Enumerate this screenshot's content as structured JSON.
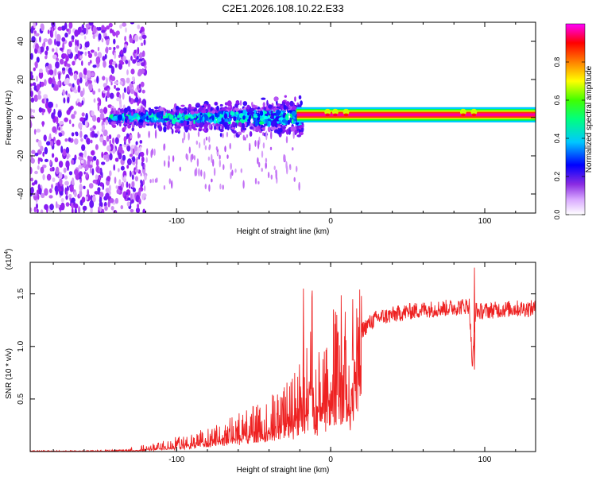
{
  "figure": {
    "title": "C2E1.2026.108.10.22.E33"
  },
  "chart_data": [
    {
      "type": "heatmap",
      "name": "spectrogram",
      "xlabel": "Height of straight line (km)",
      "ylabel": "Frequency (Hz)",
      "xlim": [
        -195,
        133
      ],
      "ylim": [
        -50,
        50
      ],
      "x_ticks": [
        -100,
        0,
        100
      ],
      "x_tick_labels": [
        "-100",
        "0",
        "100"
      ],
      "y_ticks": [
        -40,
        -20,
        0,
        20,
        40
      ],
      "y_tick_labels": [
        "-40",
        "-20",
        "0",
        "20",
        "40"
      ],
      "colorbar": {
        "label": "Normalized spectral amplitude",
        "range": [
          0.0,
          1.0
        ],
        "ticks": [
          0.0,
          0.2,
          0.4,
          0.6,
          0.8
        ],
        "tick_labels": [
          "0.0",
          "0.2",
          "0.4",
          "0.6",
          "0.8"
        ],
        "colors": [
          "#ffffff",
          "#a020f0",
          "#0000ff",
          "#00ffff",
          "#00ff00",
          "#ffff00",
          "#ff8000",
          "#ff0000",
          "#ff00ff"
        ]
      },
      "regions": [
        {
          "name": "noise",
          "x_range": [
            -195,
            -120
          ],
          "y_range": [
            -50,
            50
          ],
          "amplitude": 0.15
        },
        {
          "name": "scattered-band",
          "x_range": [
            -143,
            -18
          ],
          "y_center": 0,
          "y_spread": 8,
          "amplitude": 0.35
        },
        {
          "name": "tone",
          "x_range": [
            -22,
            133
          ],
          "frequency": 1.5,
          "amplitude": 1.0
        }
      ]
    },
    {
      "type": "line",
      "name": "snr",
      "xlabel": "Height of straight line (km)",
      "ylabel": "SNR (10 * v/v)",
      "y_scale_label": "(x10",
      "y_scale_exp": "4",
      "y_scale_close": ")",
      "xlim": [
        -195,
        133
      ],
      "ylim": [
        0,
        1.8
      ],
      "x_ticks": [
        -100,
        0,
        100
      ],
      "x_tick_labels": [
        "-100",
        "0",
        "100"
      ],
      "y_ticks": [
        0.5,
        1.0,
        1.5
      ],
      "y_tick_labels": [
        "0.5",
        "1.0",
        "1.5"
      ],
      "color": "#ee2222",
      "series": [
        {
          "name": "SNR",
          "x": [
            -195,
            -160,
            -130,
            -110,
            -100,
            -90,
            -80,
            -70,
            -60,
            -50,
            -40,
            -30,
            -25,
            -20,
            -15,
            -12,
            -10,
            -5,
            0,
            5,
            10,
            12,
            15,
            20,
            25,
            30,
            40,
            50,
            60,
            70,
            80,
            85,
            90,
            92,
            94,
            96,
            100,
            110,
            120,
            133
          ],
          "y": [
            0.0,
            0.0,
            0.01,
            0.05,
            0.08,
            0.1,
            0.14,
            0.18,
            0.22,
            0.27,
            0.33,
            0.4,
            0.45,
            0.55,
            0.65,
            1.0,
            0.55,
            0.7,
            0.82,
            0.95,
            1.0,
            0.5,
            1.05,
            1.15,
            1.22,
            1.27,
            1.3,
            1.33,
            1.35,
            1.36,
            1.37,
            1.38,
            1.39,
            0.8,
            1.35,
            1.33,
            1.34,
            1.35,
            1.36,
            1.36
          ]
        }
      ],
      "spikes": [
        {
          "x": -18,
          "y": 1.55
        },
        {
          "x": 14,
          "y": 1.45
        },
        {
          "x": 93,
          "y": 1.75
        },
        {
          "x": 93,
          "y": 0.78
        }
      ]
    }
  ]
}
